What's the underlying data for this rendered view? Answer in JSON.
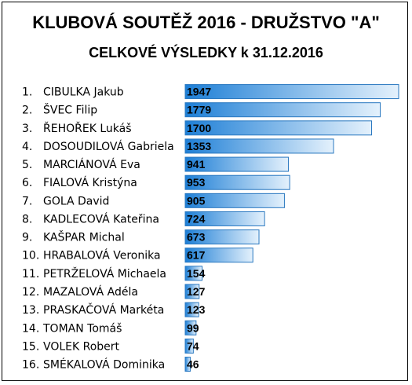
{
  "title": "KLUBOVÁ SOUTĚŽ 2016 - DRUŽSTVO \"A\"",
  "subtitle": "CELKOVÉ VÝSLEDKY k 31.12.2016",
  "colors": {
    "bar_dark": "#1e7fd6",
    "bar_light": "#e4f1fc",
    "bar_border": "#2a78c0"
  },
  "chart_data": {
    "type": "bar",
    "orientation": "horizontal",
    "title": "KLUBOVÁ SOUTĚŽ 2016 - DRUŽSTVO \"A\"",
    "subtitle": "CELKOVÉ VÝSLEDKY k 31.12.2016",
    "ranks": [
      "1.",
      "2.",
      "3.",
      "4.",
      "5.",
      "6.",
      "7.",
      "8.",
      "9.",
      "10.",
      "11.",
      "12.",
      "13.",
      "14.",
      "15.",
      "16."
    ],
    "categories": [
      "CIBULKA Jakub",
      "ŠVEC Filip",
      "ŘEHOŘEK Lukáš",
      "DOSOUDILOVÁ Gabriela",
      "MARCIÁNOVÁ Eva",
      "FIALOVÁ Kristýna",
      "GOLA David",
      "KADLECOVÁ Kateřina",
      "KAŠPAR Michal",
      "HRABALOVÁ Veronika",
      "PETRŽELOVÁ Michaela",
      "MAZALOVÁ Adéla",
      "PRASKAČOVÁ Markéta",
      "TOMAN Tomáš",
      "VOLEK Robert",
      "SMÉKALOVÁ Dominika"
    ],
    "values": [
      1947,
      1779,
      1700,
      1353,
      941,
      953,
      905,
      724,
      673,
      617,
      154,
      127,
      123,
      99,
      74,
      46
    ],
    "xlim": [
      0,
      1947
    ],
    "grid": false,
    "legend": "none"
  }
}
